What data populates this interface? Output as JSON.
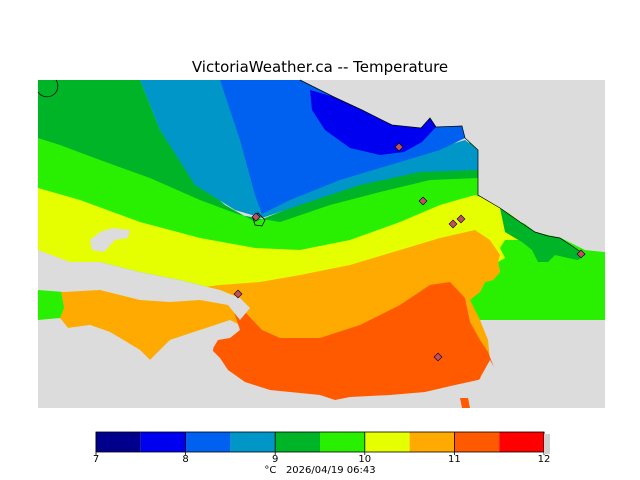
{
  "title": "VictoriaWeather.ca -- Temperature",
  "legend": {
    "unit": "°C",
    "timestamp": "2026/04/19 06:43",
    "ticks": [
      "7",
      "8",
      "9",
      "10",
      "11",
      "12"
    ],
    "bins": [
      {
        "from": 7.0,
        "to": 7.5,
        "color": "#00008c"
      },
      {
        "from": 7.5,
        "to": 8.0,
        "color": "#0000f0"
      },
      {
        "from": 8.0,
        "to": 8.5,
        "color": "#0060f0"
      },
      {
        "from": 8.5,
        "to": 9.0,
        "color": "#0096c8"
      },
      {
        "from": 9.0,
        "to": 9.5,
        "color": "#00b428"
      },
      {
        "from": 9.5,
        "to": 10.0,
        "color": "#28f000"
      },
      {
        "from": 10.0,
        "to": 10.5,
        "color": "#e6ff00"
      },
      {
        "from": 10.5,
        "to": 11.0,
        "color": "#ffaa00"
      },
      {
        "from": 11.0,
        "to": 11.5,
        "color": "#ff5a00"
      },
      {
        "from": 11.5,
        "to": 12.0,
        "color": "#ff0000"
      }
    ]
  },
  "colors": {
    "water": "#dcdcdc",
    "background": "#ffffff",
    "station_marker": "#c05060"
  }
}
